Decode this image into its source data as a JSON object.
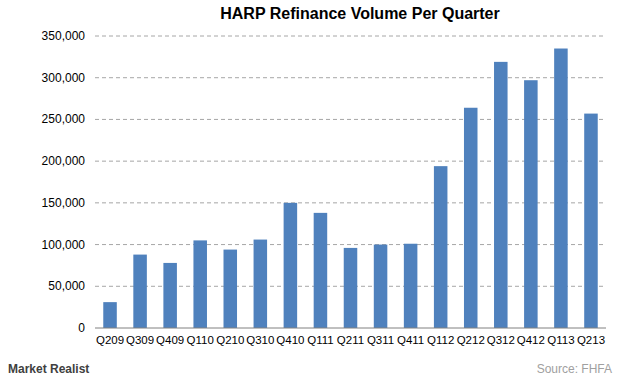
{
  "chart_data": {
    "type": "bar",
    "title": "HARP Refinance Volume Per Quarter",
    "categories": [
      "Q209",
      "Q309",
      "Q409",
      "Q110",
      "Q210",
      "Q310",
      "Q410",
      "Q111",
      "Q211",
      "Q311",
      "Q411",
      "Q112",
      "Q212",
      "Q312",
      "Q412",
      "Q113",
      "Q213"
    ],
    "values": [
      31000,
      88000,
      78000,
      105000,
      94000,
      106000,
      150000,
      138000,
      96000,
      100000,
      101000,
      194000,
      264000,
      319000,
      297000,
      335000,
      257000
    ],
    "color": "#4f81bd",
    "ylim": [
      0,
      350000
    ],
    "yticks": [
      0,
      {
        "value": 50000,
        "label": "50,000"
      },
      {
        "value": 100000,
        "label": "100,000"
      },
      {
        "value": 150000,
        "label": "150,000"
      },
      {
        "value": 200000,
        "label": "200,000"
      },
      {
        "value": 250000,
        "label": "250,000"
      },
      {
        "value": 300000,
        "label": "300,000"
      },
      {
        "value": 350000,
        "label": "350,000"
      }
    ],
    "grid": true,
    "source": "Source: FHFA",
    "brand": "Market Realist"
  }
}
